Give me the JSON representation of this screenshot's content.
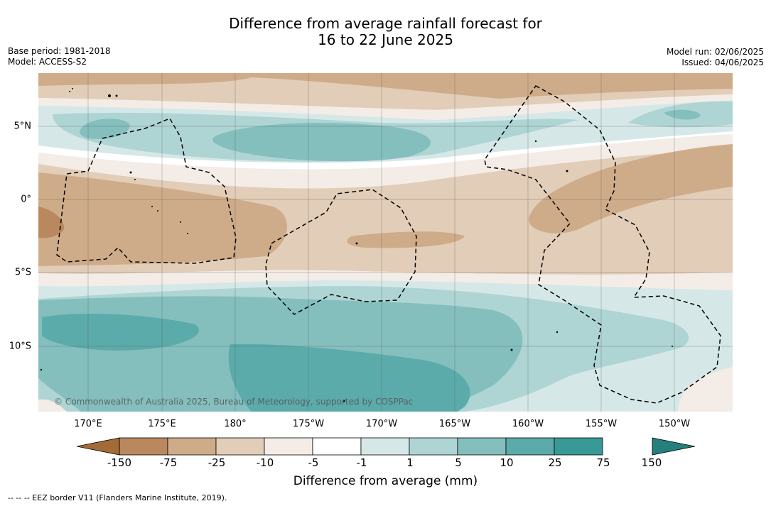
{
  "header": {
    "title_line1": "Difference from average rainfall forecast for",
    "title_line2": "16 to 22 June 2025",
    "base_period": "Base period: 1981-2018",
    "model": "Model: ACCESS-S2",
    "model_run": "Model run: 02/06/2025",
    "issued": "Issued: 04/06/2025"
  },
  "map": {
    "copyright": "© Commonwealth of Australia 2025, Bureau of Meteorology, supported by COSPPac",
    "lat_labels": [
      "5°N",
      "0°",
      "5°S",
      "10°S"
    ],
    "lon_labels": [
      "170°E",
      "175°E",
      "180°",
      "175°W",
      "170°W",
      "165°W",
      "160°W",
      "155°W",
      "150°W"
    ]
  },
  "legend": {
    "ticks": [
      "-150",
      "-75",
      "-25",
      "-10",
      "-5",
      "-1",
      "1",
      "5",
      "10",
      "25",
      "75",
      "150"
    ],
    "colors": [
      "#a36b35",
      "#b9885e",
      "#cfac89",
      "#e2cdb8",
      "#f4ece6",
      "#ffffff",
      "#d5e8e7",
      "#aed5d4",
      "#84bfbe",
      "#5cabab",
      "#389997",
      "#257f7c"
    ],
    "label": "Difference from average (mm)"
  },
  "footnote": "--  --  -- EEZ border V11 (Flanders Marine Institute, 2019)."
}
